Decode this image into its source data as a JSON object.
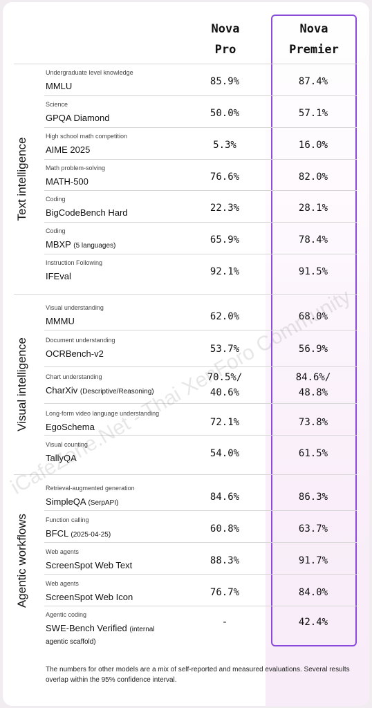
{
  "headers": {
    "pro_line1": "Nova",
    "pro_line2": "Pro",
    "premier_line1": "Nova",
    "premier_line2": "Premier"
  },
  "sections": [
    {
      "label": "Text intelligence"
    },
    {
      "label": "Visual intelligence"
    },
    {
      "label": "Agentic workflows"
    }
  ],
  "rows": [
    {
      "cat": "Undergraduate level knowledge",
      "name": "MMLU",
      "note": "",
      "pro": "85.9%",
      "premier": "87.4%"
    },
    {
      "cat": "Science",
      "name": "GPQA Diamond",
      "note": "",
      "pro": "50.0%",
      "premier": "57.1%"
    },
    {
      "cat": "High school math competition",
      "name": "AIME 2025",
      "note": "",
      "pro": "5.3%",
      "premier": "16.0%"
    },
    {
      "cat": "Math problem-solving",
      "name": "MATH-500",
      "note": "",
      "pro": "76.6%",
      "premier": "82.0%"
    },
    {
      "cat": "Coding",
      "name": "BigCodeBench Hard",
      "note": "",
      "pro": "22.3%",
      "premier": "28.1%"
    },
    {
      "cat": "Coding",
      "name": "MBXP",
      "note": "(5 languages)",
      "pro": "65.9%",
      "premier": "78.4%"
    },
    {
      "cat": "Instruction Following",
      "name": "IFEval",
      "note": "",
      "pro": "92.1%",
      "premier": "91.5%"
    },
    {
      "cat": "Visual understanding",
      "name": "MMMU",
      "note": "",
      "pro": "62.0%",
      "premier": "68.0%"
    },
    {
      "cat": "Document understanding",
      "name": "OCRBench-v2",
      "note": "",
      "pro": "53.7%",
      "premier": "56.9%"
    },
    {
      "cat": "Chart understanding",
      "name": "CharXiv",
      "note": "(Descriptive/Reasoning)",
      "pro": "70.5%/",
      "pro2": "40.6%",
      "premier": "84.6%/",
      "premier2": "48.8%"
    },
    {
      "cat": "Long-form video language understanding",
      "name": "EgoSchema",
      "note": "",
      "pro": "72.1%",
      "premier": "73.8%"
    },
    {
      "cat": "Visual counting",
      "name": "TallyQA",
      "note": "",
      "pro": "54.0%",
      "premier": "61.5%"
    },
    {
      "cat": "Retrieval-augmented generation",
      "name": "SimpleQA",
      "note": "(SerpAPI)",
      "pro": "84.6%",
      "premier": "86.3%"
    },
    {
      "cat": "Function calling",
      "name": "BFCL",
      "note": "(2025-04-25)",
      "pro": "60.8%",
      "premier": "63.7%"
    },
    {
      "cat": "Web agents",
      "name": "ScreenSpot Web Text",
      "note": "",
      "pro": "88.3%",
      "premier": "91.7%"
    },
    {
      "cat": "Web agents",
      "name": "ScreenSpot Web Icon",
      "note": "",
      "pro": "76.7%",
      "premier": "84.0%"
    },
    {
      "cat": "Agentic coding",
      "name": "SWE-Bench Verified",
      "note": "(internal",
      "note2": "agentic scaffold)",
      "pro": "-",
      "premier": "42.4%"
    }
  ],
  "footnote": "The numbers for other models are a mix of self-reported and measured evaluations. Several results overlap within the 95% confidence interval.",
  "watermark": "iCafeZone.Net - Thai XenForo Community",
  "colors": {
    "accent": "#8a4bdc",
    "divider": "#d6d6d6"
  }
}
